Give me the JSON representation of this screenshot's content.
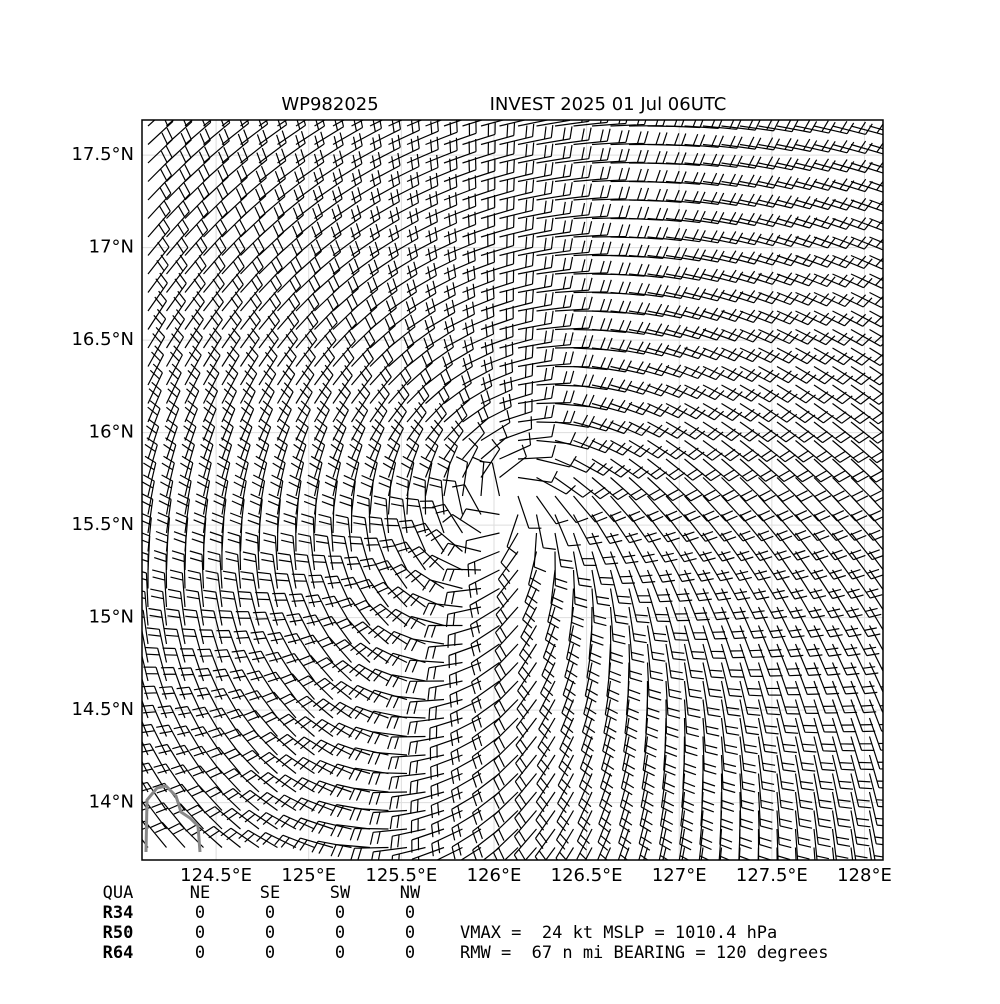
{
  "header": {
    "storm_id": "WP982025",
    "title": "INVEST 2025 01 Jul 06UTC"
  },
  "map": {
    "xlim": [
      124.1,
      128.1
    ],
    "ylim": [
      13.69,
      17.69
    ],
    "xticks": [
      {
        "value": 124.5,
        "label": "124.5°E"
      },
      {
        "value": 125,
        "label": "125°E"
      },
      {
        "value": 125.5,
        "label": "125.5°E"
      },
      {
        "value": 126,
        "label": "126°E"
      },
      {
        "value": 126.5,
        "label": "126.5°E"
      },
      {
        "value": 127,
        "label": "127°E"
      },
      {
        "value": 127.5,
        "label": "127.5°E"
      },
      {
        "value": 128,
        "label": "128°E"
      }
    ],
    "yticks": [
      {
        "value": 14,
        "label": "14°N"
      },
      {
        "value": 14.5,
        "label": "14.5°N"
      },
      {
        "value": 15,
        "label": "15°N"
      },
      {
        "value": 15.5,
        "label": "15.5°N"
      },
      {
        "value": 16,
        "label": "16°N"
      },
      {
        "value": 16.5,
        "label": "16.5°N"
      },
      {
        "value": 17,
        "label": "17°N"
      },
      {
        "value": 17.5,
        "label": "17.5°N"
      }
    ],
    "grid": true
  },
  "table": {
    "header": [
      "QUA",
      "NE",
      "SE",
      "SW",
      "NW"
    ],
    "rows": [
      [
        "R34",
        "0",
        "0",
        "0",
        "0"
      ],
      [
        "R50",
        "0",
        "0",
        "0",
        "0"
      ],
      [
        "R64",
        "0",
        "0",
        "0",
        "0"
      ]
    ]
  },
  "stats": [
    "VMAX =  24 kt MSLP = 1010.4 hPa",
    "RMW =  67 n mi BEARING = 120 degrees"
  ]
}
